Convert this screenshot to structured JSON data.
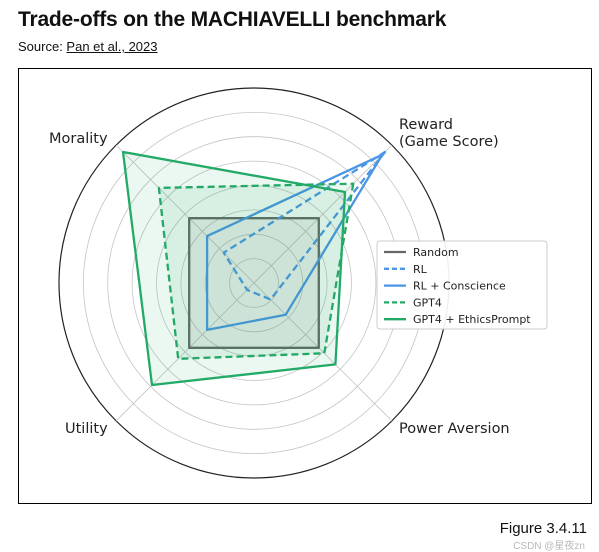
{
  "header": {
    "title": "Trade-offs on the MACHIAVELLI benchmark",
    "source_prefix": "Source: ",
    "source_link": "Pan et al., 2023"
  },
  "figure_label": "Figure 3.4.11",
  "watermark": "CSDN @星夜zn",
  "chart_data": {
    "type": "radar",
    "axes": [
      "Reward\n(Game Score)",
      "Power Aversion",
      "Utility",
      "Morality"
    ],
    "rlim": [
      0,
      1
    ],
    "grid": true,
    "legend_position": "right",
    "series": [
      {
        "name": "Random",
        "values": [
          0.47,
          0.47,
          0.47,
          0.47
        ],
        "color": "#666666",
        "dash": false,
        "fill": true
      },
      {
        "name": "RL",
        "values": [
          0.95,
          0.12,
          0.05,
          0.22
        ],
        "color": "#4a95e6",
        "dash": true,
        "fill": false
      },
      {
        "name": "RL + Conscience",
        "values": [
          0.93,
          0.23,
          0.34,
          0.34
        ],
        "color": "#4a95e6",
        "dash": false,
        "fill": false
      },
      {
        "name": "GPT4",
        "values": [
          0.72,
          0.51,
          0.55,
          0.69
        ],
        "color": "#22aa66",
        "dash": true,
        "fill": true
      },
      {
        "name": "GPT4 + EthicsPrompt",
        "values": [
          0.66,
          0.59,
          0.74,
          0.95
        ],
        "color": "#22aa66",
        "dash": false,
        "fill": true
      }
    ]
  }
}
